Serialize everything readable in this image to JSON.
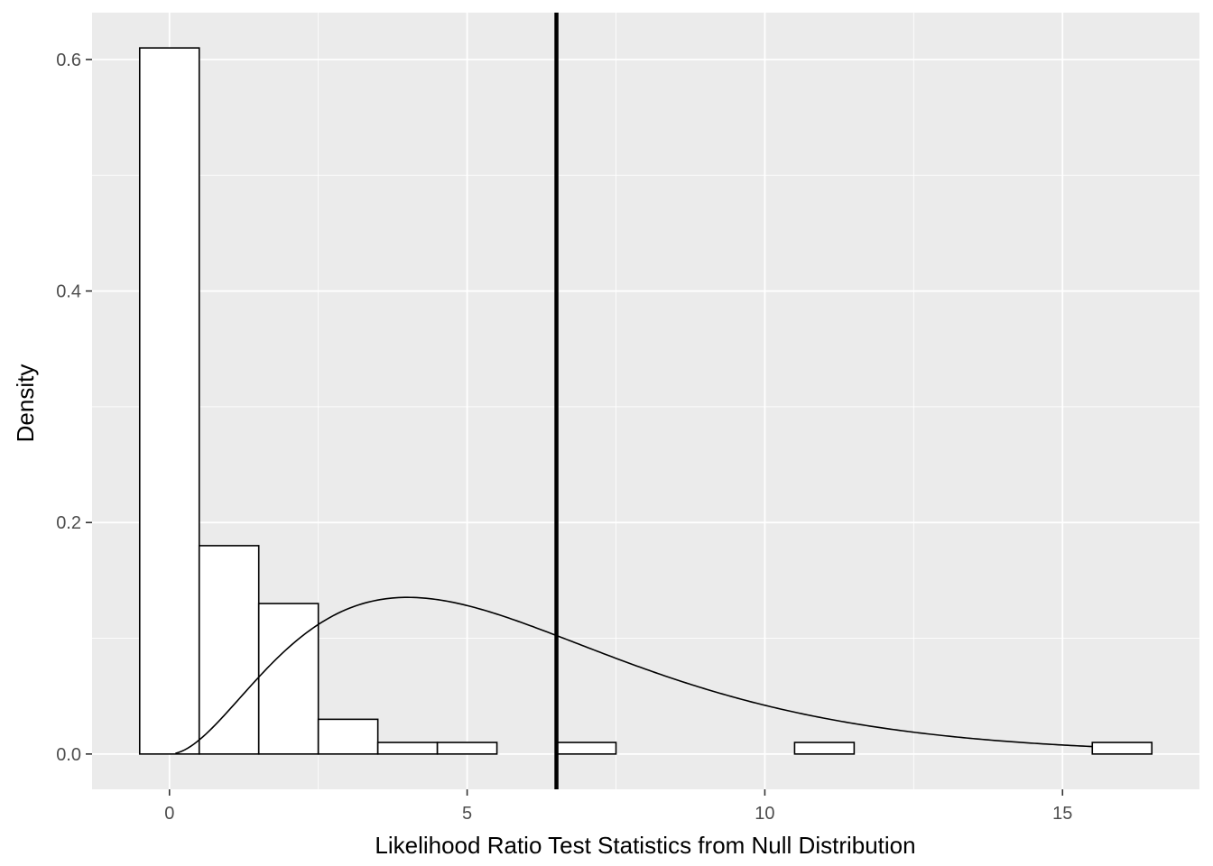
{
  "chart_data": {
    "type": "bar",
    "title": "",
    "xlabel": "Likelihood Ratio Test Statistics from Null Distribution",
    "ylabel": "Density",
    "xlim": [
      -1.3,
      17.3
    ],
    "ylim": [
      -0.0305,
      0.6405
    ],
    "x_ticks": [
      0,
      5,
      10,
      15
    ],
    "x_tick_labels": [
      "0",
      "5",
      "10",
      "15"
    ],
    "y_ticks": [
      0.0,
      0.2,
      0.4,
      0.6
    ],
    "y_tick_labels": [
      "0.0",
      "0.2",
      "0.4",
      "0.6"
    ],
    "grid": true,
    "legend": "none",
    "histogram": {
      "binwidth": 1,
      "bins": [
        {
          "x": 0,
          "density": 0.61
        },
        {
          "x": 1,
          "density": 0.18
        },
        {
          "x": 2,
          "density": 0.13
        },
        {
          "x": 3,
          "density": 0.03
        },
        {
          "x": 4,
          "density": 0.01
        },
        {
          "x": 5,
          "density": 0.01
        },
        {
          "x": 7,
          "density": 0.01
        },
        {
          "x": 11,
          "density": 0.01
        },
        {
          "x": 16,
          "density": 0.01
        }
      ],
      "fill": "#ffffff",
      "stroke": "#000000"
    },
    "density_curve": {
      "distribution": "chi-squared",
      "df": 6,
      "x_range": [
        0.1,
        15.5
      ],
      "color": "#000000"
    },
    "vertical_line": {
      "x": 6.5,
      "color": "#000000"
    },
    "panel_background": "#ebebeb",
    "grid_color": "#ffffff"
  }
}
